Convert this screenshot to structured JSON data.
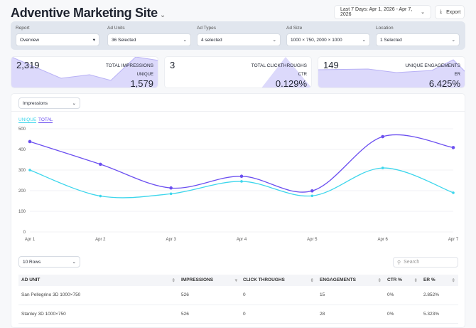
{
  "header": {
    "title": "Adventive Marketing Site",
    "date_range": "Last 7 Days: Apr 1, 2026 - Apr 7, 2026",
    "export_label": "Export"
  },
  "filters": [
    {
      "label": "Report",
      "value": "Overview"
    },
    {
      "label": "Ad Units",
      "value": "36 Selected"
    },
    {
      "label": "Ad Types",
      "value": "4 selected"
    },
    {
      "label": "Ad Size",
      "value": "1000 × 750, 2000 × 1000"
    },
    {
      "label": "Location",
      "value": "1 Selected"
    }
  ],
  "cards": [
    {
      "value": "2,319",
      "label": "TOTAL IMPRESSIONS",
      "sub_label": "UNIQUE",
      "sub_value": "1,579"
    },
    {
      "value": "3",
      "label": "TOTAL CLICKTHROUGHS",
      "sub_label": "CTR",
      "sub_value": "0.129%"
    },
    {
      "value": "149",
      "label": "UNIQUE ENGAGEMENTS",
      "sub_label": "ER",
      "sub_value": "6.425%"
    }
  ],
  "metric_select": "Impressions",
  "legend": {
    "unique": "UNIQUE",
    "total": "TOTAL"
  },
  "colors": {
    "unique": "#3dd6ec",
    "total": "#6b4ff0",
    "card_fill": "#dcd9fb"
  },
  "chart_data": {
    "type": "line",
    "x": [
      "Apr 1",
      "Apr 2",
      "Apr 3",
      "Apr 4",
      "Apr 5",
      "Apr 6",
      "Apr 7"
    ],
    "ylim": [
      0,
      500
    ],
    "yticks": [
      0,
      100,
      200,
      300,
      400,
      500
    ],
    "series": [
      {
        "name": "TOTAL",
        "values": [
          438,
          328,
          213,
          270,
          199,
          462,
          409
        ]
      },
      {
        "name": "UNIQUE",
        "values": [
          300,
          174,
          185,
          245,
          175,
          310,
          190
        ]
      }
    ]
  },
  "table": {
    "rows_select": "10 Rows",
    "search_placeholder": "Search",
    "columns": [
      "AD UNIT",
      "IMPRESSIONS",
      "CLICK THROUGHS",
      "ENGAGEMENTS",
      "CTR %",
      "ER %"
    ],
    "rows": [
      [
        "San Pellegrino 3D 1000×750",
        "526",
        "0",
        "15",
        "0%",
        "2.852%"
      ],
      [
        "Stanley 3D 1000×750",
        "526",
        "0",
        "28",
        "0%",
        "5.323%"
      ]
    ]
  }
}
